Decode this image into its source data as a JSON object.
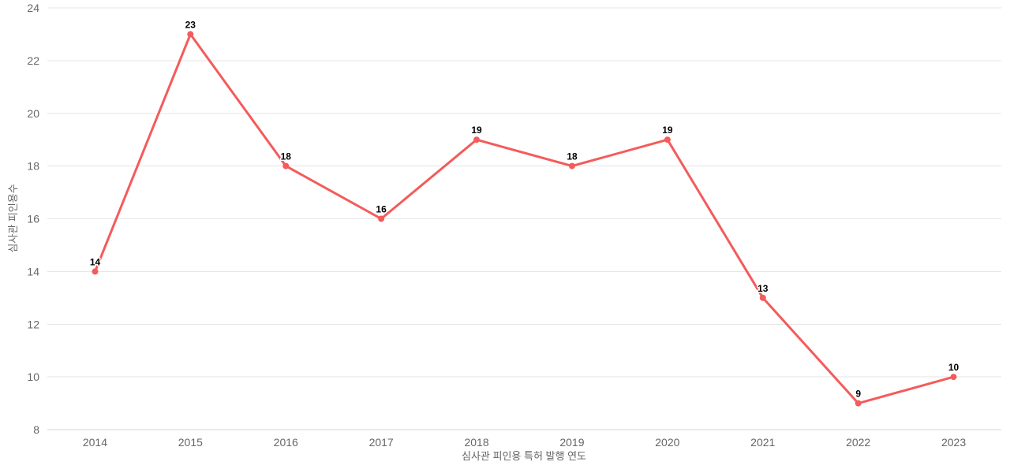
{
  "chart_data": {
    "type": "line",
    "categories": [
      "2014",
      "2015",
      "2016",
      "2017",
      "2018",
      "2019",
      "2020",
      "2021",
      "2022",
      "2023"
    ],
    "values": [
      14,
      23,
      18,
      16,
      19,
      18,
      19,
      13,
      9,
      10
    ],
    "xlabel": "심사관 피인용 특허 발행 연도",
    "ylabel": "심사관 피인용수",
    "ylim": [
      8,
      24
    ],
    "ytick_step": 2,
    "yticks": [
      8,
      10,
      12,
      14,
      16,
      18,
      20,
      22,
      24
    ],
    "grid": true,
    "legend": "none",
    "data_labels_shown": true,
    "colors": {
      "series": "#f45b5b",
      "grid": "#e6e6e6",
      "axis_line": "#ccd6eb",
      "tick_label": "#666666",
      "axis_title": "#666666",
      "data_label": "#000000",
      "background": "#ffffff"
    }
  }
}
